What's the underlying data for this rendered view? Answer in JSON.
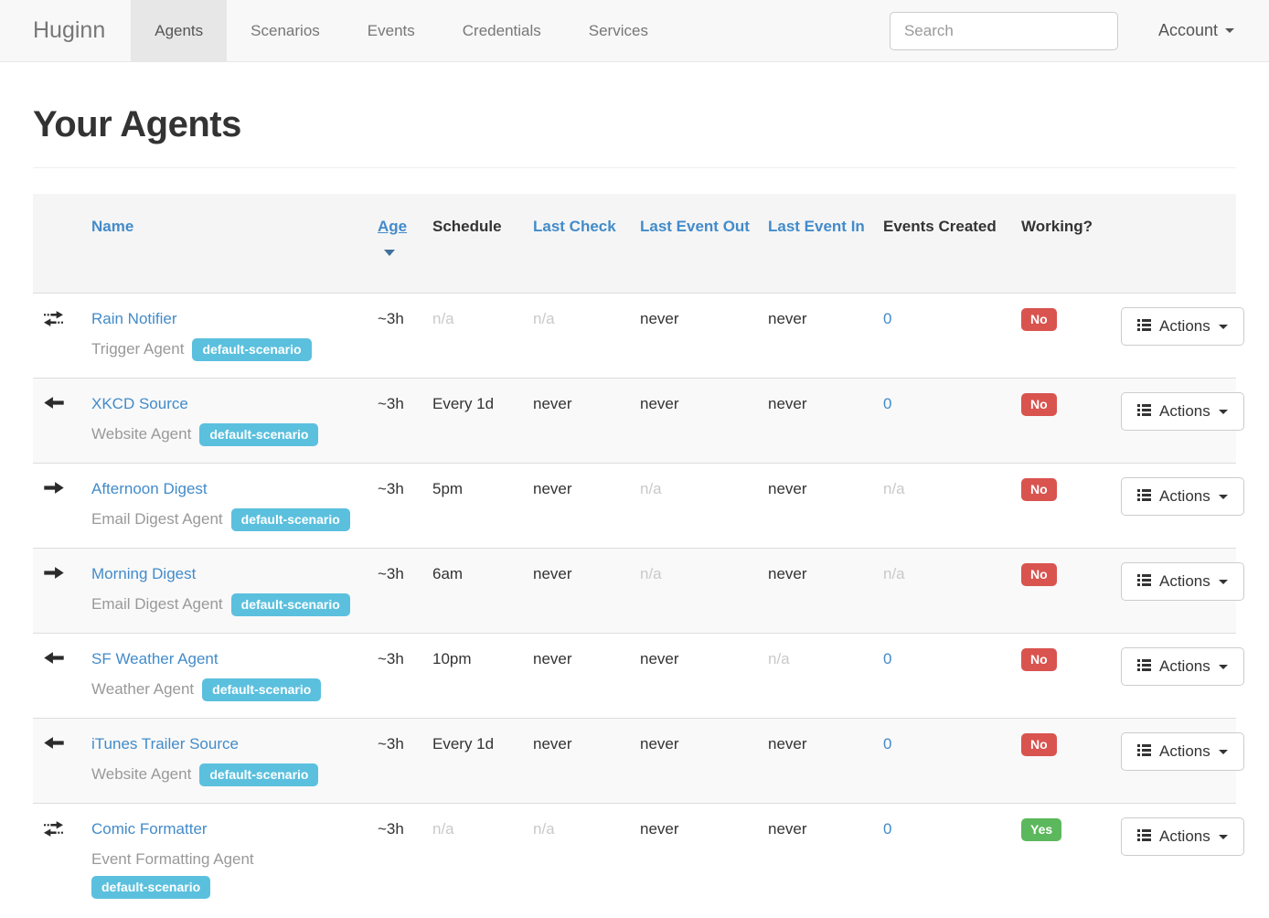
{
  "colors": {
    "accent_blue": "#428bca",
    "badge_info": "#5bc0de",
    "label_danger": "#d9534f",
    "label_success": "#5cb85c"
  },
  "navbar": {
    "brand": "Huginn",
    "items": [
      {
        "label": "Agents",
        "active": true
      },
      {
        "label": "Scenarios",
        "active": false
      },
      {
        "label": "Events",
        "active": false
      },
      {
        "label": "Credentials",
        "active": false
      },
      {
        "label": "Services",
        "active": false
      }
    ],
    "search_placeholder": "Search",
    "account_label": "Account"
  },
  "page": {
    "title": "Your Agents"
  },
  "table": {
    "headers": [
      {
        "label": "",
        "style": "plain"
      },
      {
        "label": "Name",
        "style": "link"
      },
      {
        "label": "Age",
        "style": "link",
        "underline": true,
        "sort": "desc"
      },
      {
        "label": "Schedule",
        "style": "plain"
      },
      {
        "label": "Last Check",
        "style": "link"
      },
      {
        "label": "Last Event Out",
        "style": "link"
      },
      {
        "label": "Last Event In",
        "style": "link"
      },
      {
        "label": "Events Created",
        "style": "plain"
      },
      {
        "label": "Working?",
        "style": "plain"
      },
      {
        "label": "",
        "style": "plain"
      }
    ],
    "actions_label": "Actions",
    "rows": [
      {
        "icon": "exchange",
        "name": "Rain Notifier",
        "type": "Trigger Agent",
        "badge": "default-scenario",
        "age": "~3h",
        "schedule": "n/a",
        "last_check": "n/a",
        "last_event_out": "never",
        "last_event_in": "never",
        "events_created": "0",
        "working": "No"
      },
      {
        "icon": "arrow-left",
        "name": "XKCD Source",
        "type": "Website Agent",
        "badge": "default-scenario",
        "age": "~3h",
        "schedule": "Every 1d",
        "last_check": "never",
        "last_event_out": "never",
        "last_event_in": "never",
        "events_created": "0",
        "working": "No"
      },
      {
        "icon": "arrow-right",
        "name": "Afternoon Digest",
        "type": "Email Digest Agent",
        "badge": "default-scenario",
        "age": "~3h",
        "schedule": "5pm",
        "last_check": "never",
        "last_event_out": "n/a",
        "last_event_in": "never",
        "events_created": "n/a",
        "working": "No"
      },
      {
        "icon": "arrow-right",
        "name": "Morning Digest",
        "type": "Email Digest Agent",
        "badge": "default-scenario",
        "age": "~3h",
        "schedule": "6am",
        "last_check": "never",
        "last_event_out": "n/a",
        "last_event_in": "never",
        "events_created": "n/a",
        "working": "No"
      },
      {
        "icon": "arrow-left",
        "name": "SF Weather Agent",
        "type": "Weather Agent",
        "badge": "default-scenario",
        "age": "~3h",
        "schedule": "10pm",
        "last_check": "never",
        "last_event_out": "never",
        "last_event_in": "n/a",
        "events_created": "0",
        "working": "No"
      },
      {
        "icon": "arrow-left",
        "name": "iTunes Trailer Source",
        "type": "Website Agent",
        "badge": "default-scenario",
        "age": "~3h",
        "schedule": "Every 1d",
        "last_check": "never",
        "last_event_out": "never",
        "last_event_in": "never",
        "events_created": "0",
        "working": "No"
      },
      {
        "icon": "exchange",
        "name": "Comic Formatter",
        "type": "Event Formatting Agent",
        "badge": "default-scenario",
        "age": "~3h",
        "schedule": "n/a",
        "last_check": "n/a",
        "last_event_out": "never",
        "last_event_in": "never",
        "events_created": "0",
        "working": "Yes"
      }
    ]
  }
}
